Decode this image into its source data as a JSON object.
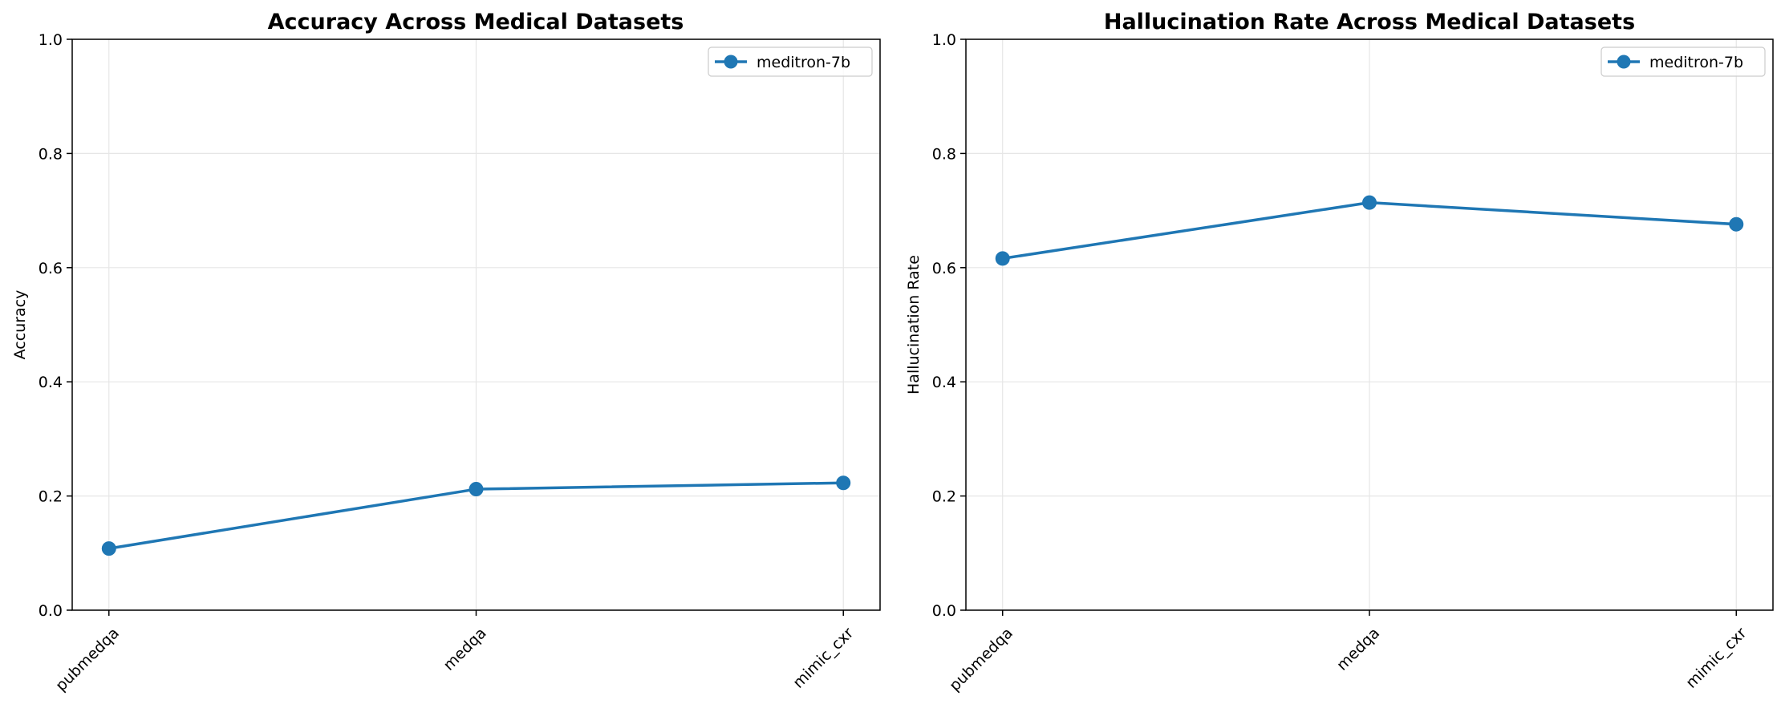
{
  "chart_data": [
    {
      "type": "line",
      "title": "Accuracy Across Medical Datasets",
      "xlabel": "",
      "ylabel": "Accuracy",
      "categories": [
        "pubmedqa",
        "medqa",
        "mimic_cxr"
      ],
      "ylim": [
        0,
        1.0
      ],
      "yticks": [
        "0.0",
        "0.2",
        "0.4",
        "0.6",
        "0.8",
        "1.0"
      ],
      "grid": true,
      "legend_position": "top-right",
      "series": [
        {
          "name": "meditron-7b",
          "values": [
            0.108,
            0.212,
            0.223
          ],
          "color": "#1f77b4",
          "marker": "circle"
        }
      ]
    },
    {
      "type": "line",
      "title": "Hallucination Rate Across Medical Datasets",
      "xlabel": "",
      "ylabel": "Hallucination Rate",
      "categories": [
        "pubmedqa",
        "medqa",
        "mimic_cxr"
      ],
      "ylim": [
        0,
        1.0
      ],
      "yticks": [
        "0.0",
        "0.2",
        "0.4",
        "0.6",
        "0.8",
        "1.0"
      ],
      "grid": true,
      "legend_position": "top-right",
      "series": [
        {
          "name": "meditron-7b",
          "values": [
            0.616,
            0.714,
            0.676
          ],
          "color": "#1f77b4",
          "marker": "circle"
        }
      ]
    }
  ]
}
